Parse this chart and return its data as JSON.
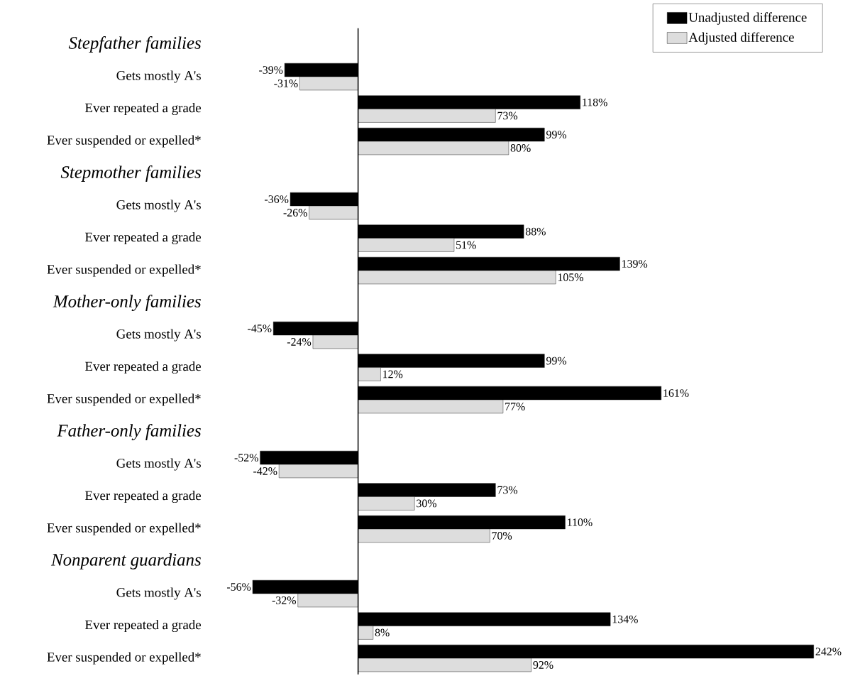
{
  "chart_data": {
    "type": "bar",
    "orientation": "horizontal",
    "legend": "top right",
    "categories": [
      "Stepfather families",
      "Gets mostly A's",
      "Ever repeated a grade",
      "Ever suspended or expelled*",
      "Stepmother families",
      "Gets mostly A's",
      "Ever repeated a grade",
      "Ever suspended or expelled*",
      "Mother-only families",
      "Gets mostly A's",
      "Ever repeated a grade",
      "Ever suspended or expelled*",
      "Father-only families",
      "Gets mostly A's",
      "Ever repeated a grade",
      "Ever suspended or expelled*",
      "Nonparent guardians",
      "Gets mostly A's",
      "Ever repeated a grade",
      "Ever suspended or expelled*"
    ],
    "series": [
      {
        "name": "Unadjusted difference",
        "color": "#000000",
        "values": [
          null,
          -39,
          118,
          99,
          null,
          -36,
          88,
          139,
          null,
          -45,
          99,
          161,
          null,
          -52,
          73,
          110,
          null,
          -56,
          134,
          242
        ],
        "value_labels": [
          null,
          "-39%",
          "118%",
          "99%",
          null,
          "-36%",
          "88%",
          "139%",
          null,
          "-45%",
          "99%",
          "161%",
          null,
          "-52%",
          "73%",
          "110%",
          null,
          "-56%",
          "134%",
          "242%"
        ]
      },
      {
        "name": "Adjusted difference",
        "color": "#dddddd",
        "values": [
          null,
          -31,
          73,
          80,
          null,
          -26,
          51,
          105,
          null,
          -24,
          12,
          77,
          null,
          -42,
          30,
          70,
          null,
          -32,
          8,
          92
        ],
        "value_labels": [
          null,
          "-31%",
          "73%",
          "80%",
          null,
          "-26%",
          "51%",
          "105%",
          null,
          "-24%",
          "12%",
          "77%",
          null,
          "-42%",
          "30%",
          "70%",
          null,
          "-32%",
          "8%",
          "92%"
        ]
      }
    ]
  }
}
